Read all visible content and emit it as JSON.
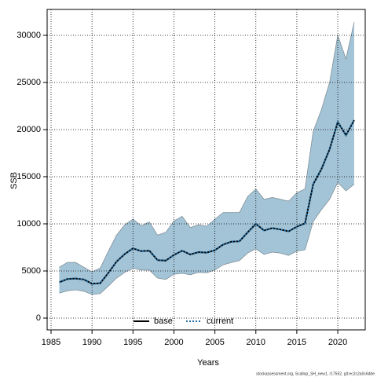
{
  "chart_data": {
    "type": "line",
    "x_label": "Years",
    "y_label": "SSB",
    "footer": "stockassessment.org, Scallop_SH_new1, r17552, git:ec2c2a0c6dde",
    "x": [
      1986,
      1987,
      1988,
      1989,
      1990,
      1991,
      1992,
      1993,
      1994,
      1995,
      1996,
      1997,
      1998,
      1999,
      2000,
      2001,
      2002,
      2003,
      2004,
      2005,
      2006,
      2007,
      2008,
      2009,
      2010,
      2011,
      2012,
      2013,
      2014,
      2015,
      2016,
      2017,
      2018,
      2019,
      2020,
      2021,
      2022
    ],
    "series": [
      {
        "name": "base",
        "color": "#000000",
        "values": [
          3800,
          4150,
          4200,
          4100,
          3650,
          3700,
          4800,
          6000,
          6800,
          7400,
          7100,
          7150,
          6150,
          6100,
          6700,
          7150,
          6750,
          7000,
          6950,
          7200,
          7800,
          8100,
          8150,
          9100,
          10000,
          9300,
          9550,
          9400,
          9200,
          9700,
          10050,
          14200,
          15800,
          17900,
          20800,
          19400,
          21000
        ]
      },
      {
        "name": "current",
        "color": "#1f6fa8",
        "values": [
          3800,
          4150,
          4200,
          4100,
          3650,
          3700,
          4800,
          6000,
          6800,
          7400,
          7100,
          7150,
          6150,
          6100,
          6700,
          7150,
          6750,
          7000,
          6950,
          7200,
          7800,
          8100,
          8150,
          9100,
          10000,
          9300,
          9550,
          9400,
          9200,
          9700,
          10050,
          14200,
          15800,
          17900,
          20800,
          19400,
          21000
        ]
      }
    ],
    "band": {
      "color": "#a3c4d6",
      "upper": [
        5400,
        5900,
        5900,
        5400,
        4900,
        5300,
        7100,
        8800,
        9900,
        10500,
        9800,
        10200,
        8800,
        9100,
        10300,
        10800,
        9600,
        9900,
        9750,
        10500,
        11200,
        11200,
        11200,
        12900,
        13700,
        12600,
        12800,
        12600,
        12400,
        13300,
        13700,
        19800,
        22100,
        25000,
        30000,
        27500,
        31400
      ],
      "lower": [
        2650,
        2900,
        3000,
        2850,
        2500,
        2600,
        3400,
        4250,
        4850,
        5300,
        5100,
        5100,
        4250,
        4100,
        4650,
        4750,
        4600,
        4850,
        4800,
        5100,
        5650,
        5900,
        6100,
        6900,
        7350,
        6750,
        7000,
        6900,
        6650,
        7100,
        7250,
        10250,
        11500,
        12600,
        14400,
        13500,
        14200
      ]
    },
    "xlim": [
      1984.52,
      2023.35
    ],
    "ylim": [
      -1250,
      32750
    ],
    "xticks": [
      1985,
      1990,
      1995,
      2000,
      2005,
      2010,
      2015,
      2020
    ],
    "yticks": [
      0,
      5000,
      10000,
      15000,
      20000,
      25000,
      30000
    ],
    "grid": true,
    "legend": "bottom"
  }
}
